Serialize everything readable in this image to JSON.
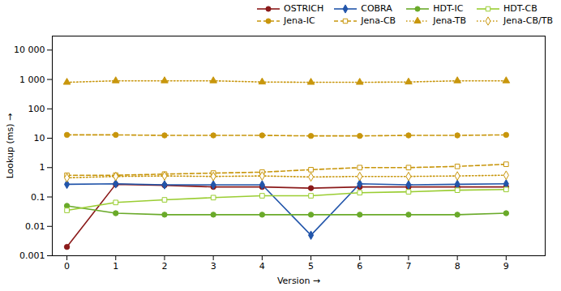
{
  "chart_data": {
    "type": "line",
    "x": [
      0,
      1,
      2,
      3,
      4,
      5,
      6,
      7,
      8,
      9
    ],
    "xlabel": "Version",
    "ylabel": "Lookup (ms)",
    "xlim": [
      -0.3,
      9.8
    ],
    "xticks": [
      0,
      1,
      2,
      3,
      4,
      5,
      6,
      7,
      8,
      9
    ],
    "ylim": [
      0.001,
      30000
    ],
    "yticks": [
      0.001,
      0.01,
      0.1,
      1,
      10,
      100,
      {
        "value": 1000,
        "label": "1 000"
      },
      {
        "value": 10000,
        "label": "10 000"
      }
    ],
    "log": "y",
    "legend": "upper right",
    "series": [
      {
        "name": "OSTRICH",
        "color": "#8B1A1A",
        "marker": "circle",
        "line_style": "solid",
        "values": [
          0.002,
          0.27,
          0.25,
          0.22,
          0.22,
          0.2,
          0.22,
          0.22,
          0.22,
          0.22
        ]
      },
      {
        "name": "COBRA",
        "color": "#2255AA",
        "marker": "diamond",
        "line_style": "solid",
        "values": [
          0.27,
          0.28,
          0.26,
          0.26,
          0.26,
          0.005,
          0.28,
          0.26,
          0.27,
          0.28
        ]
      },
      {
        "name": "HDT-IC",
        "color": "#6AAA2A",
        "marker": "circle",
        "line_style": "solid",
        "values": [
          0.05,
          0.028,
          0.025,
          0.025,
          0.025,
          0.025,
          0.025,
          0.025,
          0.025,
          0.028
        ]
      },
      {
        "name": "HDT-CB",
        "color": "#9ACD32",
        "marker": "open square",
        "line_style": "solid",
        "values": [
          0.035,
          0.065,
          0.08,
          0.095,
          0.11,
          0.11,
          0.14,
          0.15,
          0.17,
          0.18
        ]
      },
      {
        "name": "Jena-IC",
        "color": "#C8960C",
        "marker": "circle",
        "line_style": "dashed",
        "values": [
          13.0,
          13.0,
          12.5,
          12.5,
          12.5,
          12.0,
          12.0,
          12.5,
          12.5,
          13.0
        ]
      },
      {
        "name": "Jena-CB",
        "color": "#C8960C",
        "marker": "open square",
        "line_style": "dashed",
        "values": [
          0.55,
          0.55,
          0.6,
          0.65,
          0.7,
          0.85,
          1.0,
          1.0,
          1.1,
          1.3
        ]
      },
      {
        "name": "Jena-TB",
        "color": "#C8960C",
        "marker": "triangle",
        "line_style": "dotted",
        "values": [
          800,
          900,
          900,
          900,
          820,
          800,
          800,
          820,
          900,
          900
        ]
      },
      {
        "name": "Jena-CB/TB",
        "color": "#C8960C",
        "marker": "open diamond",
        "line_style": "dotted",
        "values": [
          0.45,
          0.5,
          0.52,
          0.5,
          0.52,
          0.48,
          0.5,
          0.5,
          0.52,
          0.55
        ]
      }
    ]
  }
}
